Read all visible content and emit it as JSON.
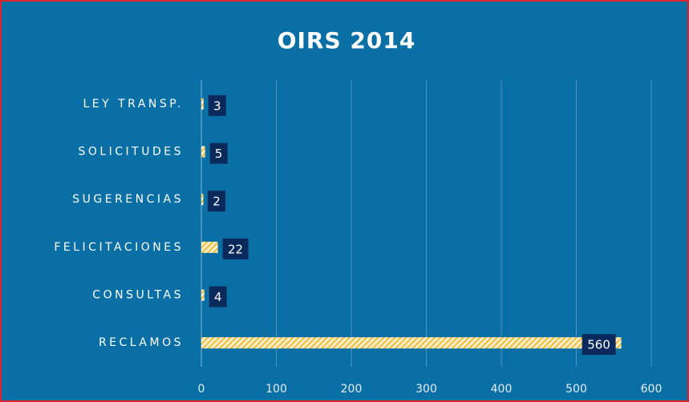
{
  "chart_data": {
    "type": "hbar",
    "title": "OIRS 2014",
    "categories": [
      "LEY TRANSP.",
      "SOLICITUDES",
      "SUGERENCIAS",
      "FELICITACIONES",
      "CONSULTAS",
      "RECLAMOS"
    ],
    "values": [
      3,
      5,
      2,
      22,
      4,
      560
    ],
    "color": "#f2c14e",
    "label_color": "#0b2a5c",
    "xlim": [
      0,
      600
    ],
    "xticks": [
      0,
      100,
      200,
      300,
      400,
      500,
      600
    ],
    "grid": true
  }
}
